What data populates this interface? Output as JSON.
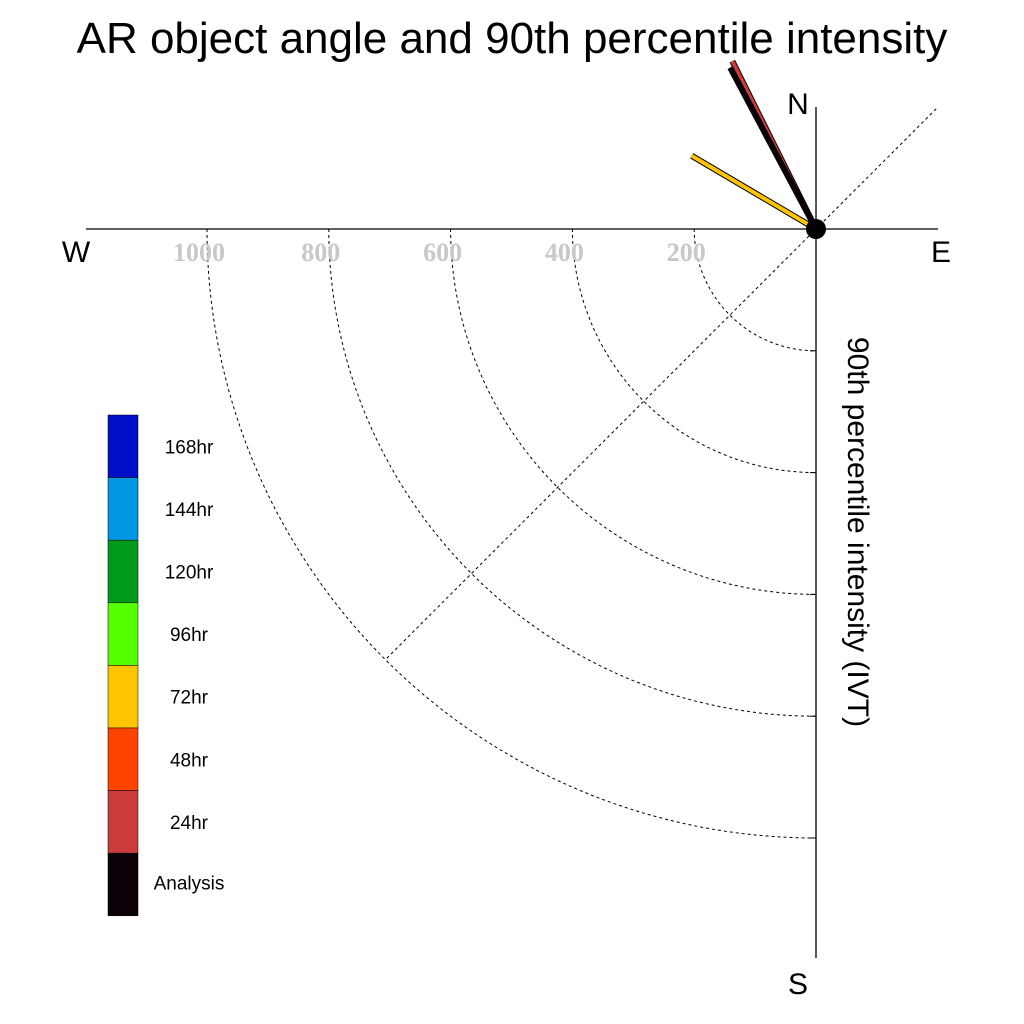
{
  "title": "AR object angle and 90th percentile intensity",
  "compass": {
    "north": "N",
    "east": "E",
    "south": "S",
    "west": "W"
  },
  "colors": {
    "axis": "#000000",
    "tick_label": "#c8c8c8",
    "center_dot": "#000000"
  },
  "chart_data": {
    "type": "polar-vector",
    "title": "AR object angle and 90th percentile intensity",
    "radial_label": "90th percentile intensity (IVT)",
    "radial_ticks": [
      200,
      400,
      600,
      800,
      1000
    ],
    "radial_max": 1200,
    "quadrant_gridlines": "dashed arcs in south-west quadrant with 45° diagonal",
    "legend": {
      "placement": "left",
      "entries": [
        {
          "label": "168hr",
          "color": "#0010c8"
        },
        {
          "label": "144hr",
          "color": "#0098e0"
        },
        {
          "label": "120hr",
          "color": "#009a1a"
        },
        {
          "label": "96hr",
          "color": "#55ff00"
        },
        {
          "label": "72hr",
          "color": "#ffc400"
        },
        {
          "label": "48hr",
          "color": "#ff4400"
        },
        {
          "label": "24hr",
          "color": "#cc3c3c"
        },
        {
          "label": "Analysis",
          "color": "#0c0008"
        }
      ]
    },
    "series": [
      {
        "name": "Analysis",
        "color": "#0c0008",
        "angle_deg": 332.0,
        "intensity": 300
      },
      {
        "name": "24hr",
        "color": "#cc3c3c",
        "angle_deg": 333.5,
        "intensity": 308
      },
      {
        "name": "48hr",
        "color": "#ff4400",
        "angle_deg": 332.5,
        "intensity": 300
      },
      {
        "name": "72hr",
        "color": "#ffc400",
        "angle_deg": 300.5,
        "intensity": 237
      }
    ]
  }
}
